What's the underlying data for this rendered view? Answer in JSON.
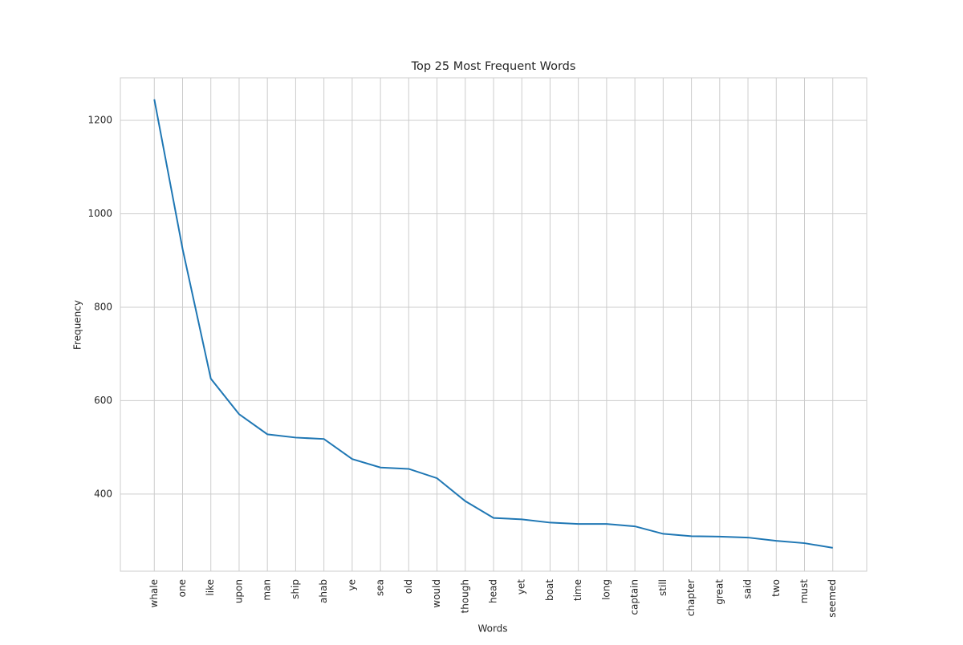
{
  "chart_data": {
    "type": "line",
    "title": "Top 25 Most Frequent Words",
    "x_label": "Words",
    "y_label": "Frequency",
    "categories": [
      "whale",
      "one",
      "like",
      "upon",
      "man",
      "ship",
      "ahab",
      "ye",
      "sea",
      "old",
      "would",
      "though",
      "head",
      "yet",
      "boat",
      "time",
      "long",
      "captain",
      "still",
      "chapter",
      "great",
      "said",
      "two",
      "must",
      "seemed"
    ],
    "series": [
      {
        "name": "Frequency",
        "color": "#1f77b4",
        "values": [
          1245,
          925,
          647,
          571,
          528,
          521,
          518,
          475,
          457,
          454,
          434,
          385,
          349,
          346,
          339,
          336,
          336,
          331,
          315,
          310,
          309,
          307,
          300,
          295,
          285
        ]
      }
    ],
    "ylim": [
      235,
      1291
    ],
    "yticks": [
      400,
      600,
      800,
      1000,
      1200
    ],
    "grid": true
  }
}
